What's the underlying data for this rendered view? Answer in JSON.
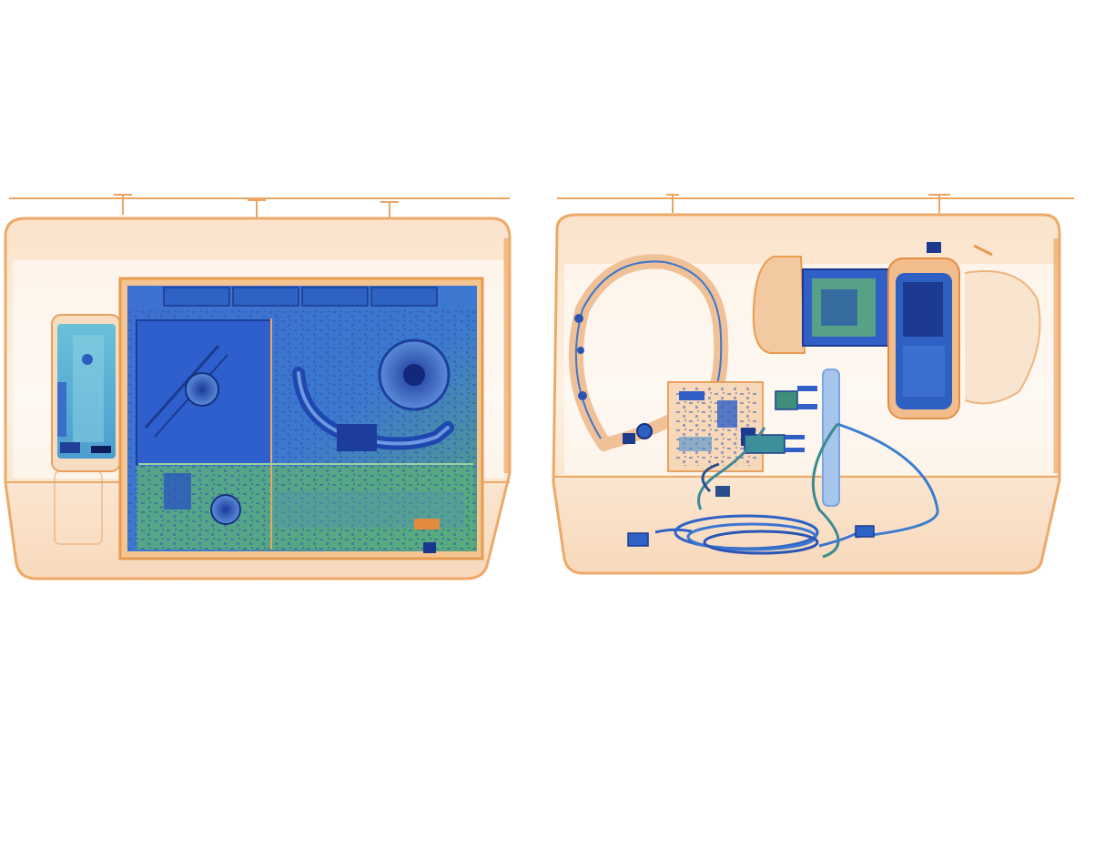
{
  "scene": {
    "type": "xray-baggage-scan",
    "palette": {
      "background": "#ffffff",
      "tray_fill": "#fbe6d2",
      "tray_edge": "#eda968",
      "tray_inner": "#fff8f0",
      "organic_orange": "#e89a55",
      "metal_blue": "#2f62c8",
      "metal_deep": "#1d3f9e",
      "mixed_green": "#5fb070",
      "mixed_teal": "#3a9fa0",
      "highlight": "#a9c8ef"
    },
    "bins": [
      {
        "name": "left-bin",
        "contents": [
          "smartphone",
          "laptop"
        ]
      },
      {
        "name": "right-bin",
        "contents": [
          "headphones",
          "circuit-board",
          "power-adapter-plug",
          "usb-cable",
          "camera"
        ]
      }
    ]
  }
}
